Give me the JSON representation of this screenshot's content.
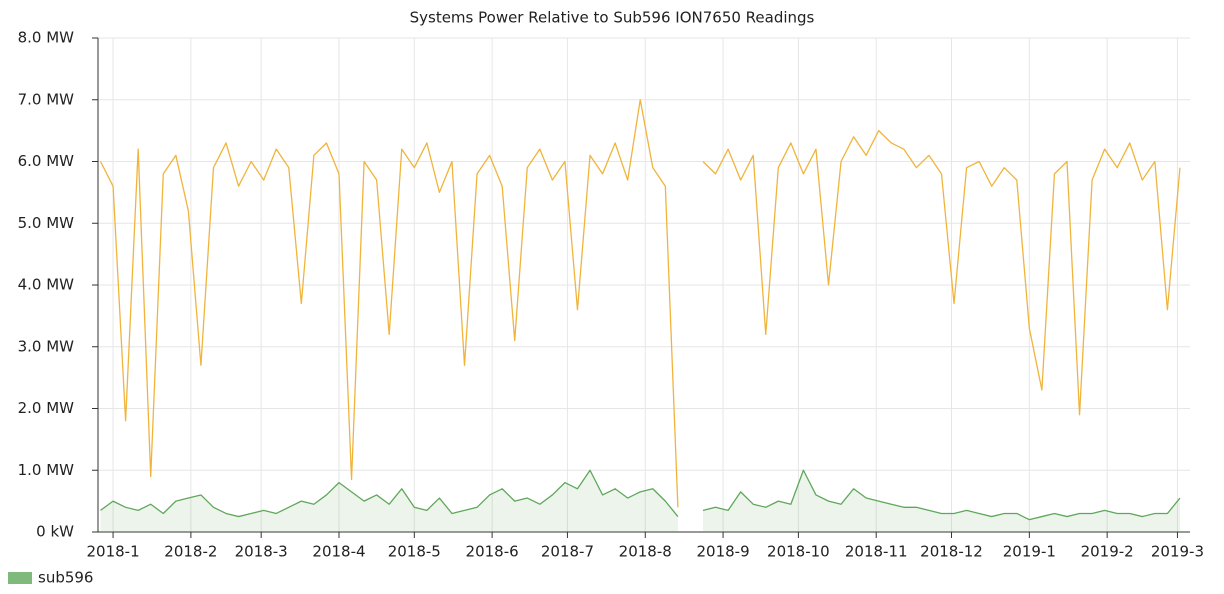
{
  "chart_data": {
    "type": "line",
    "title": "Systems Power Relative to Sub596 ION7650 Readings",
    "x": [
      -5,
      0,
      5,
      10,
      15,
      20,
      25,
      30,
      35,
      40,
      45,
      50,
      55,
      60,
      65,
      70,
      75,
      80,
      85,
      90,
      95,
      100,
      105,
      110,
      115,
      120,
      125,
      130,
      135,
      140,
      145,
      150,
      155,
      160,
      165,
      170,
      175,
      180,
      185,
      190,
      195,
      200,
      205,
      210,
      215,
      220,
      225,
      230,
      235,
      240,
      245,
      250,
      255,
      260,
      265,
      270,
      275,
      280,
      285,
      290,
      295,
      300,
      305,
      310,
      315,
      320,
      325,
      330,
      335,
      340,
      345,
      350,
      355,
      360,
      365,
      370,
      375,
      380,
      385,
      390,
      395,
      400,
      405,
      410,
      415,
      420,
      425
    ],
    "series": [
      {
        "color": "#f0b43c",
        "values": [
          6.0,
          5.6,
          1.8,
          6.2,
          0.9,
          5.8,
          6.1,
          5.2,
          2.7,
          5.9,
          6.3,
          5.6,
          6.0,
          5.7,
          6.2,
          5.9,
          3.7,
          6.1,
          6.3,
          5.8,
          0.85,
          6.0,
          5.7,
          3.2,
          6.2,
          5.9,
          6.3,
          5.5,
          6.0,
          2.7,
          5.8,
          6.1,
          5.6,
          3.1,
          5.9,
          6.2,
          5.7,
          6.0,
          3.6,
          6.1,
          5.8,
          6.3,
          5.7,
          7.0,
          5.9,
          5.6,
          0.4,
          null,
          6.0,
          5.8,
          6.2,
          5.7,
          6.1,
          3.2,
          5.9,
          6.3,
          5.8,
          6.2,
          4.0,
          6.0,
          6.4,
          6.1,
          6.5,
          6.3,
          6.2,
          5.9,
          6.1,
          5.8,
          3.7,
          5.9,
          6.0,
          5.6,
          5.9,
          5.7,
          3.3,
          2.3,
          5.8,
          6.0,
          1.9,
          5.7,
          6.2,
          5.9,
          6.3,
          5.7,
          6.0,
          3.6,
          5.9
        ]
      },
      {
        "name": "sub596",
        "color": "#5fa85a",
        "values": [
          0.35,
          0.5,
          0.4,
          0.35,
          0.45,
          0.3,
          0.5,
          0.55,
          0.6,
          0.4,
          0.3,
          0.25,
          0.3,
          0.35,
          0.3,
          0.4,
          0.5,
          0.45,
          0.6,
          0.8,
          0.65,
          0.5,
          0.6,
          0.45,
          0.7,
          0.4,
          0.35,
          0.55,
          0.3,
          0.35,
          0.4,
          0.6,
          0.7,
          0.5,
          0.55,
          0.45,
          0.6,
          0.8,
          0.7,
          1.0,
          0.6,
          0.7,
          0.55,
          0.65,
          0.7,
          0.5,
          0.25,
          null,
          0.35,
          0.4,
          0.35,
          0.65,
          0.45,
          0.4,
          0.5,
          0.45,
          1.0,
          0.6,
          0.5,
          0.45,
          0.7,
          0.55,
          0.5,
          0.45,
          0.4,
          0.4,
          0.35,
          0.3,
          0.3,
          0.35,
          0.3,
          0.25,
          0.3,
          0.3,
          0.2,
          0.25,
          0.3,
          0.25,
          0.3,
          0.3,
          0.35,
          0.3,
          0.3,
          0.25,
          0.3,
          0.3,
          0.55
        ]
      }
    ],
    "xlim": [
      -6,
      429
    ],
    "xticks": [
      {
        "value": 0,
        "label": "2018-1"
      },
      {
        "value": 31,
        "label": "2018-2"
      },
      {
        "value": 59,
        "label": "2018-3"
      },
      {
        "value": 90,
        "label": "2018-4"
      },
      {
        "value": 120,
        "label": "2018-5"
      },
      {
        "value": 151,
        "label": "2018-6"
      },
      {
        "value": 181,
        "label": "2018-7"
      },
      {
        "value": 212,
        "label": "2018-8"
      },
      {
        "value": 243,
        "label": "2018-9"
      },
      {
        "value": 273,
        "label": "2018-10"
      },
      {
        "value": 304,
        "label": "2018-11"
      },
      {
        "value": 334,
        "label": "2018-12"
      },
      {
        "value": 365,
        "label": "2019-1"
      },
      {
        "value": 396,
        "label": "2019-2"
      },
      {
        "value": 424,
        "label": "2019-3"
      }
    ],
    "ylim": [
      0,
      8
    ],
    "yticks": [
      {
        "value": 0,
        "label": "0 kW"
      },
      {
        "value": 1,
        "label": "1.0 MW"
      },
      {
        "value": 2,
        "label": "2.0 MW"
      },
      {
        "value": 3,
        "label": "3.0 MW"
      },
      {
        "value": 4,
        "label": "4.0 MW"
      },
      {
        "value": 5,
        "label": "5.0 MW"
      },
      {
        "value": 6,
        "label": "6.0 MW"
      },
      {
        "value": 7,
        "label": "7.0 MW"
      },
      {
        "value": 8,
        "label": "8.0 MW"
      }
    ],
    "grid": true,
    "legend": "bottom-left"
  }
}
